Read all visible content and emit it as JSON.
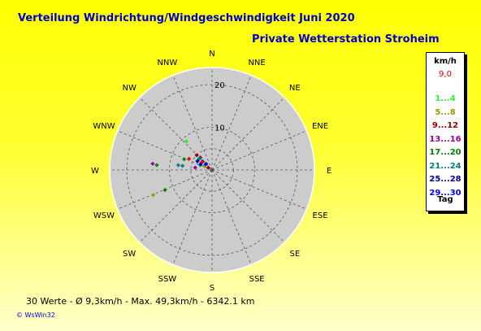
{
  "title": "Verteilung Windrichtung/Windgeschwindigkeit  Juni 2020",
  "subtitle": "Private Wetterstation Stroheim",
  "footer": "30 Werte   -   Ø 9,3km/h  -  Max. 49,3km/h   -   6342.1 km",
  "brand": "© WsWin32",
  "legend": {
    "unit": "km/h",
    "value": "9,0",
    "value_color": "#cc0000",
    "classes": [
      {
        "label": "1...4",
        "color": "#33ee33"
      },
      {
        "label": "5...8",
        "color": "#999900"
      },
      {
        "label": "9...12",
        "color": "#990000"
      },
      {
        "label": "13...16",
        "color": "#990099"
      },
      {
        "label": "17...20",
        "color": "#008000"
      },
      {
        "label": "21...24",
        "color": "#008080"
      },
      {
        "label": "25...28",
        "color": "#000099"
      },
      {
        "label": "29...30",
        "color": "#0000ff"
      }
    ],
    "day_label": "Tag"
  },
  "chart_data": {
    "type": "scatter",
    "subtype": "polar wind rose",
    "angular_axis": {
      "unit": "degrees clockwise from north",
      "labels": [
        "N",
        "NNE",
        "NE",
        "ENE",
        "E",
        "ESE",
        "SE",
        "SSE",
        "S",
        "SSW",
        "SW",
        "WSW",
        "W",
        "WNW",
        "NW",
        "NNW"
      ]
    },
    "radial_axis": {
      "ticks": [
        "10",
        "20"
      ],
      "range": [
        0,
        24
      ]
    },
    "series": [
      {
        "color": "#33ee33",
        "points": [
          {
            "dir": 303,
            "r": 2
          },
          {
            "dir": 318,
            "r": 9
          },
          {
            "dir": 292,
            "r": 3
          }
        ]
      },
      {
        "color": "#999900",
        "points": [
          {
            "dir": 314,
            "r": 4
          },
          {
            "dir": 247,
            "r": 15
          },
          {
            "dir": 297,
            "r": 2
          }
        ]
      },
      {
        "color": "#990000",
        "points": [
          {
            "dir": 314,
            "r": 5
          },
          {
            "dir": 301,
            "r": 1
          },
          {
            "dir": 305,
            "r": 3
          }
        ]
      },
      {
        "color": "#990099",
        "points": [
          {
            "dir": 276,
            "r": 14
          },
          {
            "dir": 278,
            "r": 4
          },
          {
            "dir": 317,
            "r": 4
          }
        ]
      },
      {
        "color": "#008000",
        "points": [
          {
            "dir": 247,
            "r": 12
          },
          {
            "dir": 291,
            "r": 7
          },
          {
            "dir": 275,
            "r": 13
          },
          {
            "dir": 313,
            "r": 4
          },
          {
            "dir": 310,
            "r": 2
          }
        ]
      },
      {
        "color": "#008080",
        "points": [
          {
            "dir": 278,
            "r": 8
          },
          {
            "dir": 278,
            "r": 7
          },
          {
            "dir": 310,
            "r": 4
          },
          {
            "dir": 302,
            "r": 3
          }
        ]
      },
      {
        "color": "#000099",
        "points": [
          {
            "dir": 312,
            "r": 3
          },
          {
            "dir": 301,
            "r": 4
          },
          {
            "dir": 308,
            "r": 3
          }
        ]
      },
      {
        "color": "#0000ff",
        "points": [
          {
            "dir": 295,
            "r": 3
          },
          {
            "dir": 316,
            "r": 2
          }
        ]
      },
      {
        "color": "#ff0000",
        "points": [
          {
            "dir": 296,
            "r": 6
          },
          {
            "dir": 309,
            "r": 3
          }
        ]
      }
    ]
  }
}
